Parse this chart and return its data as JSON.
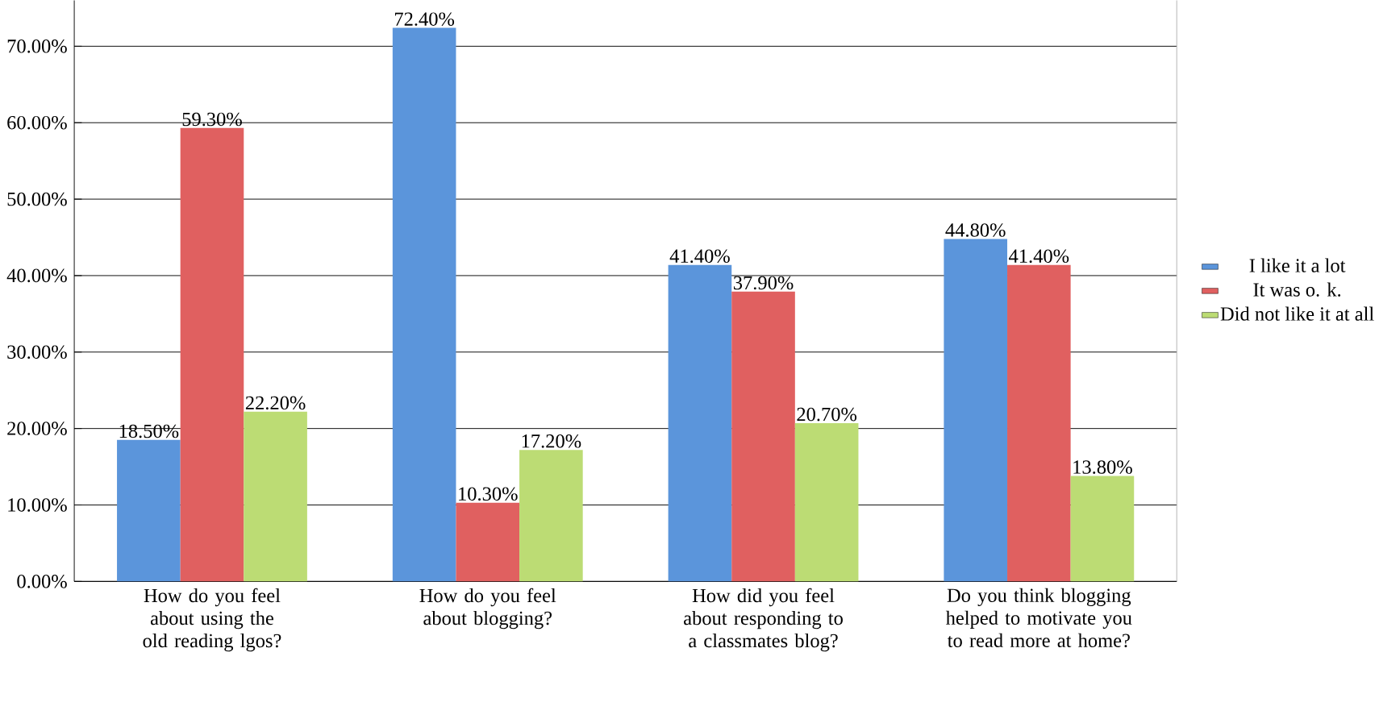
{
  "chart_data": {
    "type": "bar",
    "categories": [
      "How do you feel about using the old reading lgos?",
      "How do you feel about blogging?",
      "How did you feel about responding to a classmates blog?",
      "Do you think blogging helped to motivate you to read more at home?"
    ],
    "series": [
      {
        "name": "I like it a lot",
        "color": "#5b95db",
        "values": [
          18.5,
          72.4,
          41.4,
          44.8
        ],
        "value_labels": [
          "18.50%",
          "72.40%",
          "41.40%",
          "44.80%"
        ]
      },
      {
        "name": "It was o. k.",
        "color": "#e06060",
        "values": [
          59.3,
          10.3,
          37.9,
          41.4
        ],
        "value_labels": [
          "59.30%",
          "10.30%",
          "37.90%",
          "41.40%"
        ]
      },
      {
        "name": "Did not like it at all",
        "color": "#bcdc74",
        "values": [
          22.2,
          17.2,
          20.7,
          13.8
        ],
        "value_labels": [
          "22.20%",
          "17.20%",
          "20.70%",
          "13.80%"
        ]
      }
    ],
    "ylim": [
      0,
      76
    ],
    "yticks": [
      {
        "value": 0,
        "label": "0.00%"
      },
      {
        "value": 10,
        "label": "10.00%"
      },
      {
        "value": 20,
        "label": "20.00%"
      },
      {
        "value": 30,
        "label": "30.00%"
      },
      {
        "value": 40,
        "label": "40.00%"
      },
      {
        "value": 50,
        "label": "50.00%"
      },
      {
        "value": 60,
        "label": "60.00%"
      },
      {
        "value": 70,
        "label": "70.00%"
      }
    ],
    "grid": "y",
    "legend": "right"
  }
}
